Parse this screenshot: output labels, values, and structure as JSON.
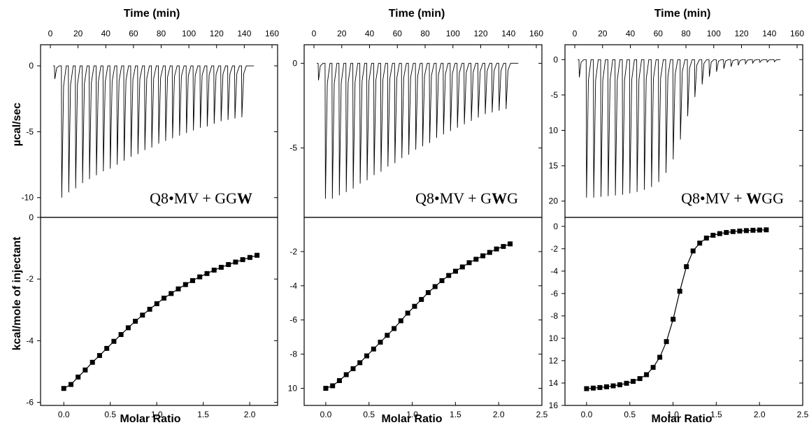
{
  "figure": {
    "y_label_top": "µcal/sec",
    "y_label_bottom": "kcal/mole of injectant"
  },
  "chart_data": [
    {
      "id": "ggw",
      "label_parts": [
        "Q8",
        "•",
        "MV + GG",
        "W"
      ],
      "top": {
        "type": "line",
        "xlabel": "Time (min)",
        "x_ticks": [
          "0",
          "20",
          "40",
          "60",
          "80",
          "100",
          "120",
          "140",
          "160"
        ],
        "xlim": [
          0,
          160
        ],
        "y_tick_values": [
          0,
          -5,
          -10
        ],
        "y_tick_labels": [
          "0",
          "-5",
          "-10"
        ],
        "ylim": [
          -11.5,
          1.6
        ],
        "start_time": 3,
        "interval": 5.0,
        "peak_depths": [
          -1.0,
          -10.0,
          -9.6,
          -9.3,
          -8.9,
          -8.6,
          -8.3,
          -8.0,
          -7.8,
          -7.5,
          -7.2,
          -6.9,
          -6.7,
          -6.4,
          -6.2,
          -5.9,
          -5.7,
          -5.5,
          -5.3,
          -5.1,
          -4.9,
          -4.7,
          -4.6,
          -4.4,
          -4.2,
          -4.1,
          -4.0,
          -3.9
        ],
        "end_time": 147
      },
      "bottom": {
        "type": "scatter",
        "xlabel": "Molar Ratio",
        "x_tick_values": [
          0.0,
          0.5,
          1.0,
          1.5,
          2.0
        ],
        "x_tick_labels": [
          "0.0",
          "0.5",
          "1.0",
          "1.5",
          "2.0"
        ],
        "xlim": [
          -0.25,
          2.3
        ],
        "y_tick_values": [
          0,
          -2,
          -4,
          -6
        ],
        "y_tick_labels": [
          "0",
          "-2",
          "-4",
          "-6"
        ],
        "ylim": [
          -6.1,
          0
        ],
        "x": [
          0.0,
          0.077,
          0.154,
          0.231,
          0.308,
          0.385,
          0.462,
          0.539,
          0.616,
          0.693,
          0.77,
          0.847,
          0.924,
          1.001,
          1.078,
          1.155,
          1.232,
          1.309,
          1.386,
          1.463,
          1.54,
          1.617,
          1.694,
          1.771,
          1.848,
          1.925,
          2.002,
          2.079
        ],
        "y": [
          -5.55,
          -5.42,
          -5.18,
          -4.95,
          -4.7,
          -4.48,
          -4.25,
          -4.02,
          -3.8,
          -3.58,
          -3.37,
          -3.17,
          -2.98,
          -2.8,
          -2.62,
          -2.47,
          -2.32,
          -2.18,
          -2.05,
          -1.93,
          -1.82,
          -1.71,
          -1.62,
          -1.53,
          -1.45,
          -1.37,
          -1.3,
          -1.23
        ],
        "fit": true
      }
    },
    {
      "id": "gwg",
      "label_parts": [
        "Q8",
        "•",
        "MV + G",
        "W",
        "G"
      ],
      "top": {
        "type": "line",
        "xlabel": "Time (min)",
        "x_ticks": [
          "0",
          "20",
          "40",
          "60",
          "80",
          "100",
          "120",
          "140",
          "160"
        ],
        "xlim": [
          0,
          160
        ],
        "y_tick_values": [
          0,
          -5
        ],
        "y_tick_labels": [
          "0",
          "-5"
        ],
        "ylim": [
          -9.1,
          1.1
        ],
        "start_time": 3,
        "interval": 5.0,
        "peak_depths": [
          -1.0,
          -8.0,
          -8.0,
          -7.8,
          -7.6,
          -7.4,
          -7.1,
          -6.9,
          -6.6,
          -6.4,
          -6.1,
          -5.9,
          -5.6,
          -5.4,
          -5.1,
          -4.9,
          -4.7,
          -4.4,
          -4.2,
          -4.0,
          -3.8,
          -3.6,
          -3.4,
          -3.2,
          -3.0,
          -2.9,
          -2.8,
          -2.7
        ],
        "end_time": 147
      },
      "bottom": {
        "type": "scatter",
        "xlabel": "Molar Ratio",
        "x_tick_values": [
          0.0,
          0.5,
          1.0,
          1.5,
          2.0,
          2.5
        ],
        "x_tick_labels": [
          "0.0",
          "0.5",
          "1.0",
          "1.5",
          "2.0",
          "2.5"
        ],
        "xlim": [
          -0.25,
          2.5
        ],
        "y_tick_values": [
          -2,
          -4,
          -6,
          -8,
          -10
        ],
        "y_tick_labels": [
          "-2",
          "-4",
          "-6",
          "-8",
          "10"
        ],
        "ylim": [
          -11,
          0
        ],
        "x": [
          0.0,
          0.079,
          0.158,
          0.237,
          0.316,
          0.395,
          0.474,
          0.553,
          0.632,
          0.711,
          0.79,
          0.869,
          0.948,
          1.027,
          1.106,
          1.185,
          1.264,
          1.343,
          1.422,
          1.501,
          1.58,
          1.659,
          1.738,
          1.817,
          1.896,
          1.975,
          2.054,
          2.133
        ],
        "y": [
          -10.0,
          -9.85,
          -9.55,
          -9.2,
          -8.85,
          -8.5,
          -8.1,
          -7.7,
          -7.3,
          -6.9,
          -6.5,
          -6.05,
          -5.6,
          -5.2,
          -4.8,
          -4.4,
          -4.05,
          -3.7,
          -3.4,
          -3.15,
          -2.9,
          -2.65,
          -2.45,
          -2.25,
          -2.05,
          -1.85,
          -1.7,
          -1.55
        ],
        "fit": true
      }
    },
    {
      "id": "wgg",
      "label_parts": [
        "Q8",
        "•",
        "MV + ",
        "W",
        "GG"
      ],
      "top": {
        "type": "line",
        "xlabel": "Time (min)",
        "x_ticks": [
          "0",
          "20",
          "40",
          "60",
          "80",
          "100",
          "120",
          "140",
          "160"
        ],
        "xlim": [
          0,
          160
        ],
        "y_tick_values": [
          0,
          -5,
          -10,
          -15,
          -20
        ],
        "y_tick_labels": [
          "0",
          "-5",
          "10",
          "15",
          "20"
        ],
        "ylim": [
          -22.3,
          2.1
        ],
        "start_time": 3,
        "interval": 5.2,
        "peak_depths": [
          -2.5,
          -19.5,
          -19.5,
          -19.4,
          -19.3,
          -19.2,
          -19.1,
          -18.9,
          -18.7,
          -18.4,
          -18.0,
          -17.3,
          -16.0,
          -14.1,
          -11.3,
          -8.0,
          -5.3,
          -3.5,
          -2.4,
          -1.7,
          -1.3,
          -1.0,
          -0.8,
          -0.6,
          -0.5,
          -0.4,
          -0.35,
          -0.3
        ],
        "end_time": 148
      },
      "bottom": {
        "type": "scatter",
        "xlabel": "Molar Ratio",
        "x_tick_values": [
          0.0,
          0.5,
          1.0,
          1.5,
          2.0,
          2.5
        ],
        "x_tick_labels": [
          "0.0",
          "0.5",
          "1.0",
          "1.5",
          "2.0",
          "2.5"
        ],
        "xlim": [
          -0.25,
          2.5
        ],
        "y_tick_values": [
          0,
          -2,
          -4,
          -6,
          -8,
          -10,
          -12,
          -14,
          -16
        ],
        "y_tick_labels": [
          "0",
          "-2",
          "-4",
          "-6",
          "-8",
          "10",
          "12",
          "14",
          "16"
        ],
        "ylim": [
          -16,
          0.8
        ],
        "x": [
          0.0,
          0.077,
          0.154,
          0.231,
          0.308,
          0.385,
          0.462,
          0.539,
          0.616,
          0.693,
          0.77,
          0.847,
          0.924,
          1.001,
          1.078,
          1.155,
          1.232,
          1.309,
          1.386,
          1.463,
          1.54,
          1.617,
          1.694,
          1.771,
          1.848,
          1.925,
          2.002,
          2.079
        ],
        "y": [
          -14.5,
          -14.45,
          -14.4,
          -14.33,
          -14.25,
          -14.15,
          -14.02,
          -13.85,
          -13.6,
          -13.25,
          -12.6,
          -11.7,
          -10.3,
          -8.3,
          -5.8,
          -3.6,
          -2.2,
          -1.5,
          -1.05,
          -0.8,
          -0.65,
          -0.55,
          -0.47,
          -0.42,
          -0.38,
          -0.35,
          -0.33,
          -0.31
        ],
        "fit": true
      }
    }
  ]
}
